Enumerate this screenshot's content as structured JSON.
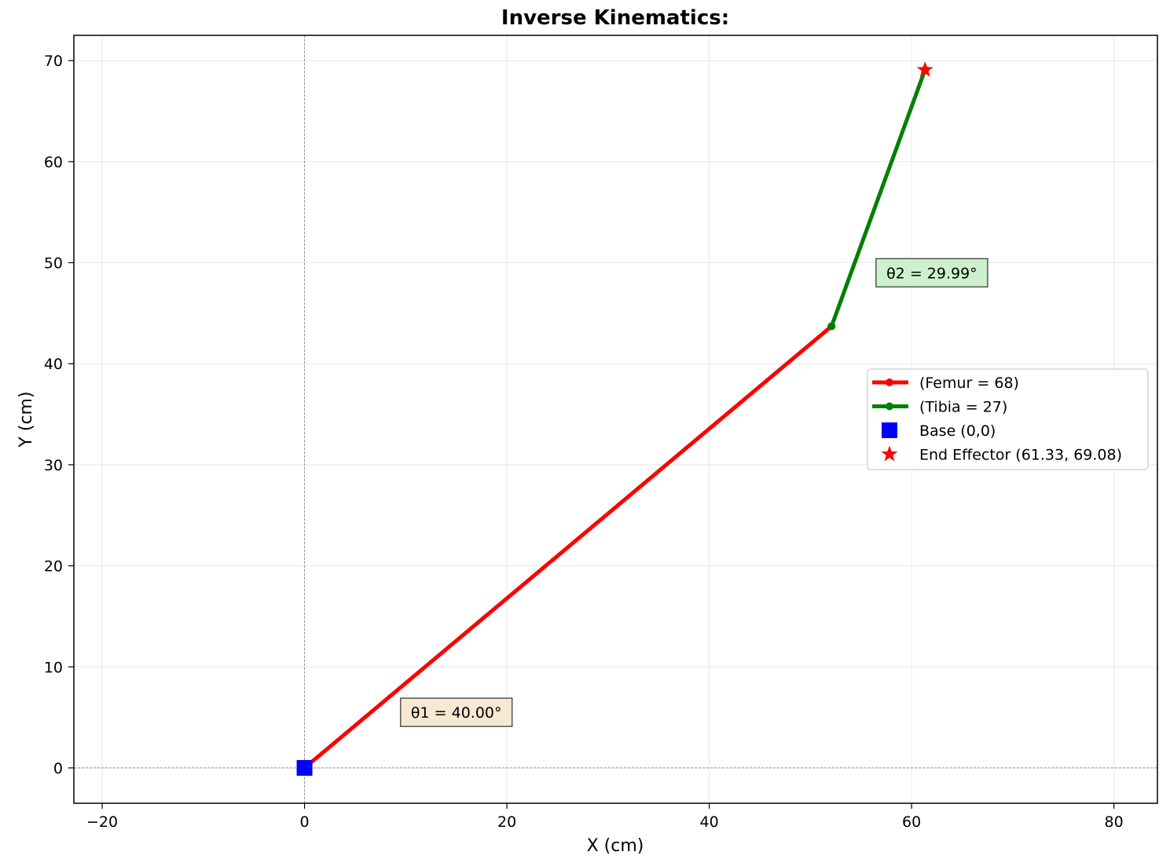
{
  "chart_data": {
    "type": "line",
    "title": "Inverse Kinematics:",
    "xlabel": "X (cm)",
    "ylabel": "Y (cm)",
    "xlim": [
      -22.8,
      84.3
    ],
    "ylim": [
      -3.5,
      72.5
    ],
    "xticks": [
      -20,
      0,
      20,
      40,
      60,
      80
    ],
    "xtick_labels": [
      "−20",
      "0",
      "20",
      "40",
      "60",
      "80"
    ],
    "yticks": [
      0,
      10,
      20,
      30,
      40,
      50,
      60,
      70
    ],
    "ytick_labels": [
      "0",
      "10",
      "20",
      "30",
      "40",
      "50",
      "60",
      "70"
    ],
    "grid": true,
    "reference_lines": {
      "x": 0,
      "y": 0
    },
    "series": [
      {
        "name": "(Femur = 68)",
        "color": "#ff0000",
        "points": [
          [
            0,
            0
          ],
          [
            52.09,
            43.71
          ]
        ]
      },
      {
        "name": "(Tibia = 27)",
        "color": "#008000",
        "points": [
          [
            52.09,
            43.71
          ],
          [
            61.33,
            69.08
          ]
        ]
      }
    ],
    "markers": [
      {
        "name": "Base (0,0)",
        "shape": "square",
        "color": "#0000ff",
        "x": 0,
        "y": 0
      },
      {
        "name": "End Effector (61.33, 69.08)",
        "shape": "star",
        "color": "#ff0000",
        "x": 61.33,
        "y": 69.08
      }
    ],
    "annotations": [
      {
        "text": "θ1 = 40.00°",
        "x": 15,
        "y": 5.5,
        "bg": "#f5e6cc"
      },
      {
        "text": "θ2 = 29.99°",
        "x": 62,
        "y": 49,
        "bg": "#c8f0c8"
      }
    ],
    "legend": {
      "position": "center-right",
      "entries": [
        "(Femur = 68)",
        "(Tibia = 27)",
        "Base (0,0)",
        "End Effector (61.33, 69.08)"
      ]
    }
  }
}
